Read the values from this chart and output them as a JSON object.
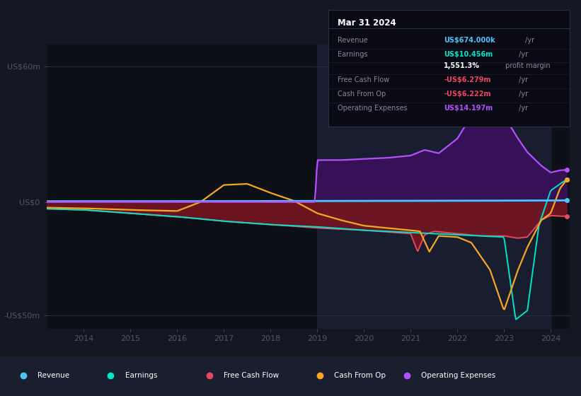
{
  "bg_color": "#131722",
  "plot_bg_color": "#0d1117",
  "legend_bg": "#1c2030",
  "colors": {
    "revenue": "#4fc3f7",
    "earnings": "#00e5c8",
    "free_cash_flow": "#e8475f",
    "cash_from_op": "#f5a623",
    "operating_expenses": "#b44fff"
  },
  "legend_items": [
    {
      "label": "Revenue",
      "color": "#4fc3f7"
    },
    {
      "label": "Earnings",
      "color": "#00e5c8"
    },
    {
      "label": "Free Cash Flow",
      "color": "#e8475f"
    },
    {
      "label": "Cash From Op",
      "color": "#f5a623"
    },
    {
      "label": "Operating Expenses",
      "color": "#b44fff"
    }
  ],
  "title_box": {
    "date": "Mar 31 2024",
    "rows": [
      {
        "label": "Revenue",
        "value": "US$674.000k",
        "unit": " /yr",
        "value_color": "#4fc3f7"
      },
      {
        "label": "Earnings",
        "value": "US$10.456m",
        "unit": " /yr",
        "value_color": "#00e5c8"
      },
      {
        "label": "",
        "value": "1,551.3%",
        "unit": " profit margin",
        "value_color": "#ffffff"
      },
      {
        "label": "Free Cash Flow",
        "value": "-US$6.279m",
        "unit": " /yr",
        "value_color": "#e8475f"
      },
      {
        "label": "Cash From Op",
        "value": "-US$6.222m",
        "unit": " /yr",
        "value_color": "#e8475f"
      },
      {
        "label": "Operating Expenses",
        "value": "US$14.197m",
        "unit": " /yr",
        "value_color": "#b44fff"
      }
    ]
  },
  "ylim": [
    -56,
    70
  ],
  "xlim": [
    2013.2,
    2024.4
  ],
  "xticks": [
    2014,
    2015,
    2016,
    2017,
    2018,
    2019,
    2020,
    2021,
    2022,
    2023,
    2024
  ],
  "ytick_vals": [
    60,
    0,
    -50
  ],
  "ytick_labels": [
    "US$60m",
    "US$0",
    "-US$50m"
  ],
  "highlight_start": 2019.0,
  "highlight_end": 2024.0
}
